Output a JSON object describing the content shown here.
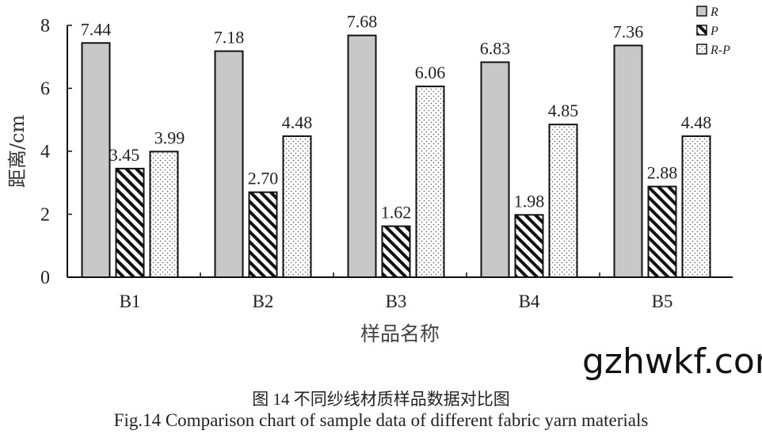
{
  "chart_data": {
    "type": "bar",
    "categories": [
      "B1",
      "B2",
      "B3",
      "B4",
      "B5"
    ],
    "series": [
      {
        "name": "R",
        "values": [
          7.44,
          7.18,
          7.68,
          6.83,
          7.36
        ],
        "fill": "#c8c8c8",
        "pattern": "solid"
      },
      {
        "name": "P",
        "values": [
          3.45,
          2.7,
          1.62,
          1.98,
          2.88
        ],
        "fill": "#ffffff",
        "pattern": "diagonal-hatch"
      },
      {
        "name": "R-P",
        "values": [
          3.99,
          4.48,
          6.06,
          4.85,
          4.48
        ],
        "fill": "#ffffff",
        "pattern": "dots"
      }
    ],
    "data_labels": [
      [
        "7.44",
        "7.18",
        "7.68",
        "6.83",
        "7.36"
      ],
      [
        "3.45",
        "2.70",
        "1.62",
        "1.98",
        "2.88"
      ],
      [
        "3.99",
        "4.48",
        "6.06",
        "4.85",
        "4.48"
      ]
    ],
    "xlabel": "样品名称",
    "ylabel": "距离/cm",
    "ylim": [
      0,
      8
    ],
    "yticks": [
      "0",
      "2",
      "4",
      "6",
      "8"
    ],
    "grid": false,
    "legend": "top-right"
  },
  "caption_cn": "图 14  不同纱线材质样品数据对比图",
  "caption_en": "Fig.14 Comparison chart of sample data of different fabric yarn materials",
  "watermark": "gzhwkf.com"
}
